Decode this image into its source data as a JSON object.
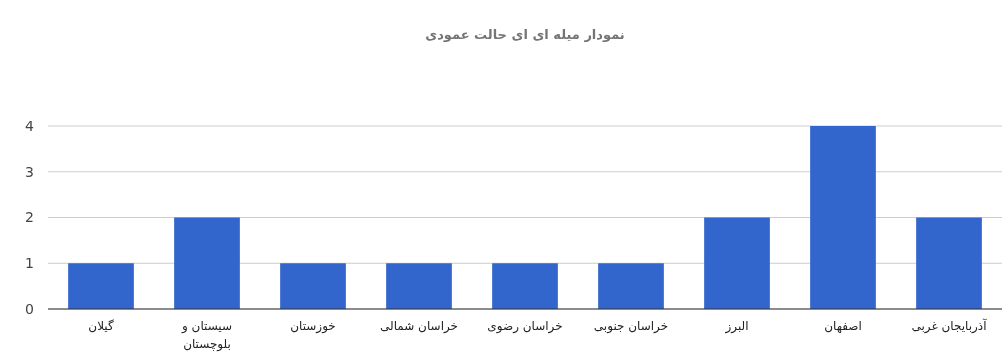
{
  "chart_data": {
    "type": "bar",
    "title": "نمودار میله ای ای حالت عمودی",
    "categories": [
      "گیلان",
      "سیستان و بلوچستان",
      "خوزستان",
      "خراسان شمالی",
      "خراسان رضوی",
      "خراسان جنوبی",
      "البرز",
      "اصفهان",
      "آذربایجان غربی"
    ],
    "values": [
      1,
      2,
      1,
      1,
      1,
      1,
      2,
      4,
      2
    ],
    "color": "#3366cc",
    "ylim": [
      0,
      4
    ],
    "yticks": [
      0,
      1,
      2,
      3,
      4
    ],
    "grid": "y"
  }
}
